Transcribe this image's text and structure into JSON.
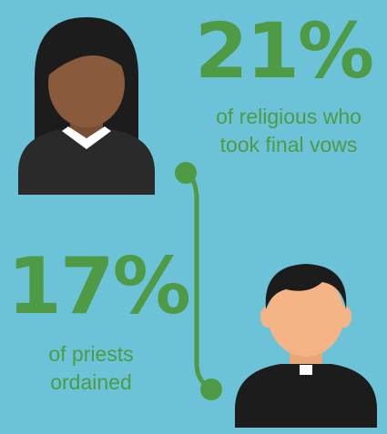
{
  "stats": [
    {
      "value": "21%",
      "caption_lines": [
        "of religious who",
        "took final vows"
      ]
    },
    {
      "value": "17%",
      "caption_lines": [
        "of priests",
        "ordained"
      ]
    }
  ],
  "colors": {
    "background": "#6cc3d8",
    "accent_green": "#4e9a45",
    "hair": "#1c1c1c",
    "garment": "#2a2a2a",
    "woman_skin": "#8a5a3c",
    "man_skin": "#f5b486",
    "collar": "#ffffff"
  },
  "icons": {
    "woman": "religious-sister-icon",
    "man": "priest-icon",
    "connector": "connector-line-icon"
  }
}
